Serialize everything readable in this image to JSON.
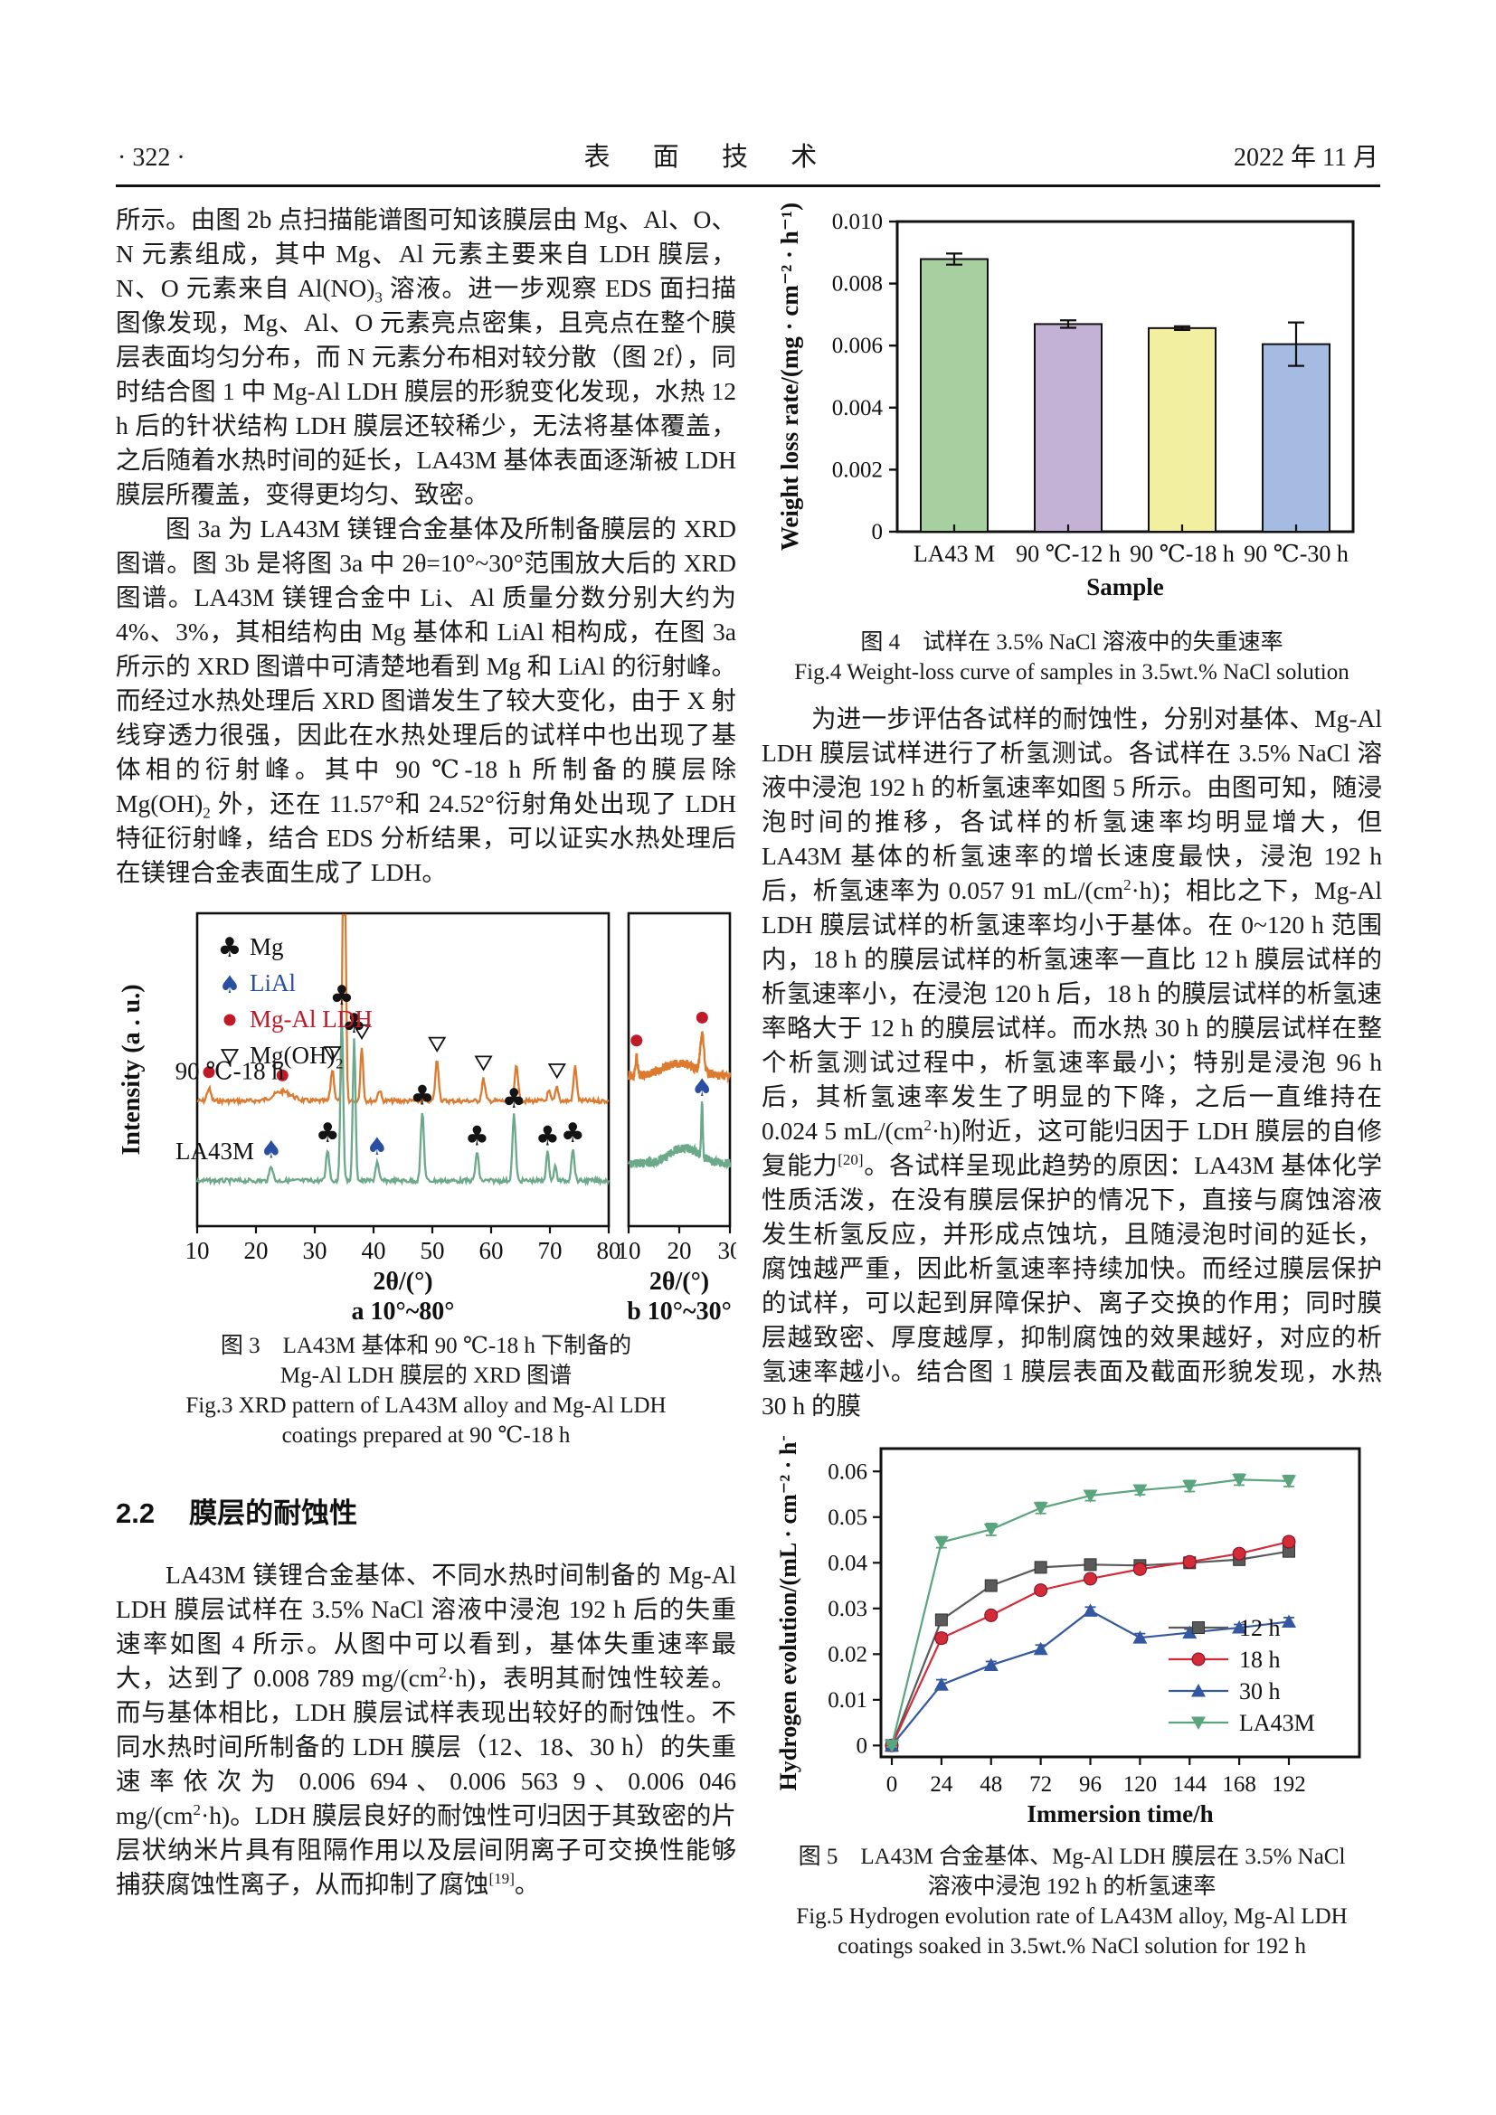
{
  "page": {
    "number": "· 322 ·",
    "journal": "表 面 技 术",
    "date": "2022 年 11 月"
  },
  "left": {
    "p1_runs": [
      {
        "t": "所示。由图 2b 点扫描能谱图可知该膜层由 Mg、Al、O、N 元素组成，其中 Mg、Al 元素主要来自 LDH 膜层，N、O 元素来自 Al(NO)"
      },
      {
        "sub": "3"
      },
      {
        "t": " 溶液。进一步观察 EDS 面扫描图像发现，Mg、Al、O 元素亮点密集，且亮点在整个膜层表面均匀分布，而 N 元素分布相对较分散（图 2f），同时结合图 1 中 Mg-Al LDH 膜层的形貌变化发现，水热 12 h 后的针状结构 LDH 膜层还较稀少，无法将基体覆盖，之后随着水热时间的延长，LA43M 基体表面逐渐被 LDH 膜层所覆盖，变得更均匀、致密。"
      }
    ],
    "p2_runs": [
      {
        "t": "图 3a 为 LA43M 镁锂合金基体及所制备膜层的 XRD 图谱。图 3b 是将图 3a 中 2θ=10°~30°范围放大后的 XRD 图谱。LA43M 镁锂合金中 Li、Al 质量分数分别大约为 4%、3%，其相结构由 Mg 基体和 LiAl 相构成，在图 3a 所示的 XRD 图谱中可清楚地看到 Mg 和 LiAl 的衍射峰。而经过水热处理后 XRD 图谱发生了较大变化，由于 X 射线穿透力很强，因此在水热处理后的试样中也出现了基体相的衍射峰。其中 90 ℃-18 h 所制备的膜层除 Mg(OH)"
      },
      {
        "sub": "2"
      },
      {
        "t": " 外，还在 11.57°和 24.52°衍射角处出现了 LDH 特征衍射峰，结合 EDS 分析结果，可以证实水热处理后在镁锂合金表面生成了 LDH。"
      }
    ],
    "section": {
      "number": "2.2",
      "title": "膜层的耐蚀性"
    },
    "p3_runs": [
      {
        "t": "LA43M 镁锂合金基体、不同水热时间制备的 Mg-Al LDH 膜层试样在 3.5% NaCl 溶液中浸泡 192 h 后的失重速率如图 4 所示。从图中可以看到，基体失重速率最大，达到了 0.008 789 mg/(cm"
      },
      {
        "sup": "2"
      },
      {
        "t": "·h)，表明其耐蚀性较差。而与基体相比，LDH 膜层试样表现出较好的耐蚀性。不同水热时间所制备的 LDH 膜层（12、18、30 h）的失重速率依次为 0.006 694、0.006 563 9、0.006 046 mg/(cm"
      },
      {
        "sup": "2"
      },
      {
        "t": "·h)。LDH 膜层良好的耐蚀性可归因于其致密的片层状纳米片具有阻隔作用以及层间阴离子可交换性能够捕获腐蚀性离子，从而抑制了腐蚀"
      },
      {
        "sup": "[19]"
      },
      {
        "t": "。"
      }
    ]
  },
  "right": {
    "p4_runs": [
      {
        "t": "为进一步评估各试样的耐蚀性，分别对基体、Mg-Al LDH 膜层试样进行了析氢测试。各试样在 3.5% NaCl 溶液中浸泡 192 h 的析氢速率如图 5 所示。由图可知，随浸泡时间的推移，各试样的析氢速率均明显增大，但 LA43M 基体的析氢速率的增长速度最快，浸泡 192 h 后，析氢速率为 0.057 91 mL/(cm"
      },
      {
        "sup": "2"
      },
      {
        "t": "·h)；相比之下，Mg-Al LDH 膜层试样的析氢速率均小于基体。在 0~120 h 范围内，18 h 的膜层试样的析氢速率一直比 12 h 膜层试样的析氢速率小，在浸泡 120 h 后，18 h 的膜层试样的析氢速率略大于 12 h 的膜层试样。而水热 30 h 的膜层试样在整个析氢测试过程中，析氢速率最小；特别是浸泡 96 h 后，其析氢速率发生了明显的下降，之后一直维持在 0.024 5 mL/(cm"
      },
      {
        "sup": "2"
      },
      {
        "t": "·h)附近，这可能归因于 LDH 膜层的自修复能力"
      },
      {
        "sup": "[20]"
      },
      {
        "t": "。各试样呈现此趋势的原因：LA43M 基体化学性质活泼，在没有膜层保护的情况下，直接与腐蚀溶液发生析氢反应，并形成点蚀坑，且随浸泡时间的延长，腐蚀越严重，因此析氢速率持续加快。而经过膜层保护的试样，可以起到屏障保护、离子交换的作用；同时膜层越致密、厚度越厚，抑制腐蚀的效果越好，对应的析氢速率越小。结合图 1 膜层表面及截面形貌发现，水热 30 h 的膜"
      }
    ]
  },
  "figures": {
    "fig3_caption": [
      "图 3　LA43M 基体和 90 ℃-18 h 下制备的",
      "Mg-Al LDH 膜层的 XRD 图谱",
      "Fig.3 XRD pattern of LA43M alloy and Mg-Al LDH",
      "coatings prepared at 90 ℃-18 h"
    ],
    "fig4_caption": [
      "图 4　试样在 3.5% NaCl 溶液中的失重速率",
      "Fig.4 Weight-loss curve of samples in 3.5wt.% NaCl solution"
    ],
    "fig5_caption": [
      "图 5　LA43M 合金基体、Mg-Al LDH 膜层在 3.5% NaCl",
      "溶液中浸泡 192 h 的析氢速率",
      "Fig.5 Hydrogen evolution rate of LA43M alloy, Mg-Al LDH",
      "coatings soaked in 3.5wt.% NaCl solution for 192 h"
    ]
  },
  "chart_data": [
    {
      "id": "fig4-bar",
      "type": "bar",
      "title": "Weight loss rate of samples in 3.5wt.% NaCl solution",
      "categories": [
        "LA43 M",
        "90 ℃-12 h",
        "90 ℃-18 h",
        "90 ℃-30 h"
      ],
      "values": [
        0.008789,
        0.006694,
        0.0065639,
        0.006046
      ],
      "errors": [
        0.00018,
        0.00012,
        6e-05,
        0.0007
      ],
      "colors": [
        "#a8cfa0",
        "#c3b2d6",
        "#f2efa0",
        "#a6bbe2"
      ],
      "bar_edge": "#111111",
      "xlabel": "Sample",
      "ylabel": "Weight loss rate/(mg · cm⁻² · h⁻¹)",
      "ylim": [
        0,
        0.01
      ],
      "yticks": [
        {
          "v": 0,
          "label": "0"
        },
        {
          "v": 0.002,
          "label": "0.002"
        },
        {
          "v": 0.004,
          "label": "0.004"
        },
        {
          "v": 0.006,
          "label": "0.006"
        },
        {
          "v": 0.008,
          "label": "0.008"
        },
        {
          "v": 0.01,
          "label": "0.010"
        }
      ]
    },
    {
      "id": "fig5-line",
      "type": "line",
      "title": "Hydrogen evolution rate soaked in 3.5wt.% NaCl solution for 192 h",
      "x": [
        0,
        24,
        48,
        72,
        96,
        120,
        144,
        168,
        192
      ],
      "series": [
        {
          "name": "12 h",
          "color": "#5a5a5a",
          "marker": "square",
          "values": [
            0,
            0.0275,
            0.035,
            0.039,
            0.0396,
            0.0394,
            0.04,
            0.0407,
            0.0425
          ],
          "errors": [
            0.0004,
            0.0009,
            0.001,
            0.0009,
            0.0009,
            0.0011,
            0.0007,
            0.0012,
            0.001
          ]
        },
        {
          "name": "18 h",
          "color": "#d42b38",
          "marker": "circle",
          "values": [
            0,
            0.0235,
            0.0285,
            0.034,
            0.0365,
            0.0386,
            0.0402,
            0.042,
            0.0446
          ],
          "errors": [
            0.0004,
            0.001,
            0.0008,
            0.0008,
            0.0007,
            0.0008,
            0.0007,
            0.0008,
            0.0009
          ]
        },
        {
          "name": "30 h",
          "color": "#33589f",
          "marker": "triangle-up",
          "values": [
            0,
            0.0133,
            0.0176,
            0.0211,
            0.0295,
            0.0236,
            0.0247,
            0.0258,
            0.0271
          ],
          "errors": [
            0.0003,
            0.0011,
            0.0008,
            0.0009,
            0.0008,
            0.0009,
            0.0008,
            0.0007,
            0.0009
          ]
        },
        {
          "name": "LA43M",
          "color": "#5ba57e",
          "marker": "triangle-down",
          "values": [
            0,
            0.0445,
            0.0473,
            0.052,
            0.0547,
            0.0559,
            0.0568,
            0.0582,
            0.0579
          ],
          "errors": [
            0.0003,
            0.0012,
            0.0013,
            0.0012,
            0.0011,
            0.001,
            0.0012,
            0.0012,
            0.0012
          ]
        }
      ],
      "xlabel": "Immersion time/h",
      "ylabel": "Hydrogen evolution/(mL · cm⁻² · h⁻¹)",
      "ylim": [
        -0.0025,
        0.065
      ],
      "yticks": [
        {
          "v": 0,
          "label": "0"
        },
        {
          "v": 0.01,
          "label": "0.01"
        },
        {
          "v": 0.02,
          "label": "0.02"
        },
        {
          "v": 0.03,
          "label": "0.03"
        },
        {
          "v": 0.04,
          "label": "0.04"
        },
        {
          "v": 0.05,
          "label": "0.05"
        },
        {
          "v": 0.06,
          "label": "0.06"
        }
      ],
      "legend_position": "inside-right-bottom"
    },
    {
      "id": "fig3-xrd",
      "type": "xrd",
      "title": "XRD pattern of LA43M alloy and Mg-Al LDH coatings prepared at 90 ℃-18 h",
      "ylabel": "Intensity (a . u.)",
      "marker_colors": {
        "dot": "#bf1a2a",
        "spade": "#2b4fa0",
        "club": "#141414",
        "tri": "#141414"
      },
      "legend": [
        {
          "sym": "club",
          "color": "#141414",
          "label": "Mg"
        },
        {
          "sym": "spade",
          "color": "#2b4fa0",
          "label": "LiAl"
        },
        {
          "sym": "dot",
          "color": "#bf1a2a",
          "label": "Mg-Al LDH"
        },
        {
          "sym": "tri",
          "color": "#141414",
          "label": "Mg(OH)₂"
        }
      ],
      "panels": [
        {
          "key": "a",
          "xlim": [
            10,
            80
          ],
          "xticks": [
            10,
            20,
            30,
            40,
            50,
            60,
            70,
            80
          ],
          "xlabel": "2θ/(°)",
          "caption": "a 10°~80°",
          "curves": [
            {
              "label": "90 ℃-18 h",
              "color": "#dc7a30",
              "base": 0.6,
              "noise": 0.007,
              "peaks": [
                [
                  12,
                  0.04,
                  0.45
                ],
                [
                  24.5,
                  0.03,
                  2.2
                ],
                [
                  33,
                  0.1,
                  0.4
                ],
                [
                  35,
                  1.3,
                  0.33
                ],
                [
                  38,
                  0.17,
                  0.33
                ],
                [
                  41,
                  0.035,
                  0.4
                ],
                [
                  50.8,
                  0.13,
                  0.4
                ],
                [
                  58.7,
                  0.07,
                  0.4
                ],
                [
                  64.3,
                  0.12,
                  0.38
                ],
                [
                  69.8,
                  0.03,
                  0.35
                ],
                [
                  71.2,
                  0.045,
                  0.35
                ],
                [
                  74.3,
                  0.11,
                  0.38
                ]
              ],
              "markers": [
                [
                  12,
                  "dot"
                ],
                [
                  24.5,
                  "dot"
                ],
                [
                  33,
                  "tri"
                ],
                [
                  38,
                  "tri"
                ],
                [
                  50.8,
                  "tri"
                ],
                [
                  58.7,
                  "tri"
                ],
                [
                  71.2,
                  "tri"
                ]
              ],
              "label_at": [
                15.5,
                -24
              ]
            },
            {
              "label": "LA43M",
              "color": "#6ca98b",
              "base": 0.855,
              "noise": 0.007,
              "peaks": [
                [
                  22.6,
                  0.05,
                  0.4
                ],
                [
                  32.2,
                  0.1,
                  0.38
                ],
                [
                  34.6,
                  0.54,
                  0.33
                ],
                [
                  36.7,
                  0.45,
                  0.33
                ],
                [
                  40.6,
                  0.06,
                  0.38
                ],
                [
                  48.3,
                  0.22,
                  0.38
                ],
                [
                  57.6,
                  0.09,
                  0.38
                ],
                [
                  63.9,
                  0.21,
                  0.38
                ],
                [
                  69.6,
                  0.09,
                  0.36
                ],
                [
                  70.9,
                  0.045,
                  0.33
                ],
                [
                  73.9,
                  0.1,
                  0.38
                ]
              ],
              "markers": [
                [
                  22.6,
                  "spade"
                ],
                [
                  32.2,
                  "club"
                ],
                [
                  34.6,
                  "club"
                ],
                [
                  36.7,
                  "club"
                ],
                [
                  40.6,
                  "spade"
                ],
                [
                  48.3,
                  "club"
                ],
                [
                  57.6,
                  "club"
                ],
                [
                  63.9,
                  "club"
                ],
                [
                  69.6,
                  "club"
                ],
                [
                  73.9,
                  "club"
                ]
              ],
              "label_at": [
                13,
                -24
              ]
            }
          ]
        },
        {
          "key": "b",
          "xlim": [
            10,
            30
          ],
          "xticks": [
            10,
            20,
            30
          ],
          "xlabel": "2θ/(°)",
          "caption": "b 10°~30°",
          "curves": [
            {
              "label": "",
              "color": "#dc7a30",
              "base": 0.52,
              "noise": 0.014,
              "peaks": [
                [
                  11.57,
                  0.06,
                  0.3
                ],
                [
                  20,
                  0.04,
                  4.5
                ],
                [
                  24.52,
                  0.12,
                  0.5
                ]
              ],
              "markers": [
                [
                  11.57,
                  "dot"
                ],
                [
                  24.52,
                  "dot"
                ]
              ]
            },
            {
              "label": "",
              "color": "#6ca98b",
              "base": 0.8,
              "noise": 0.014,
              "peaks": [
                [
                  21,
                  0.05,
                  4.0
                ],
                [
                  24.5,
                  0.17,
                  0.22
                ]
              ],
              "markers": [
                [
                  24.5,
                  "spade"
                ]
              ]
            }
          ]
        }
      ]
    }
  ]
}
